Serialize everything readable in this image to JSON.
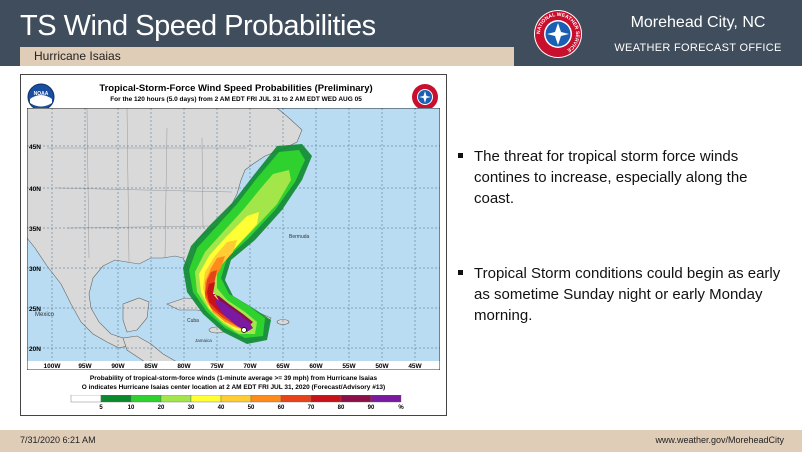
{
  "header": {
    "title": "TS Wind Speed Probabilities",
    "subtitle": "Hurricane Isaias",
    "office_name": "Morehead City, NC",
    "office_type": "WEATHER FORECAST OFFICE",
    "logo_text": "NATIONAL WEATHER SERVICE",
    "colors": {
      "header_bg": "#3f4d5c",
      "accent_bar": "#e0cdb8"
    }
  },
  "figure": {
    "title": "Tropical-Storm-Force Wind Speed Probabilities (Preliminary)",
    "subtitle": "For the 120 hours (5.0 days) from 2 AM EDT FRI JUL 31 to 2 AM EDT WED AUG 05",
    "noaa_label": "NOAA",
    "lat_labels": [
      "45N",
      "40N",
      "35N",
      "30N",
      "25N",
      "20N"
    ],
    "lon_labels": [
      "100W",
      "95W",
      "90W",
      "85W",
      "80W",
      "75W",
      "70W",
      "65W",
      "60W",
      "55W",
      "50W",
      "45W"
    ],
    "map_labels": [
      "Bermuda",
      "Mexico",
      "Cuba",
      "Jamaica"
    ],
    "note_line1": "Probability of tropical-storm-force winds (1-minute average >= 39 mph) from Hurricane Isaias",
    "note_line2": "O indicates Hurricane Isaias center location at 2 AM EDT FRI JUL 31, 2020 (Forecast/Advisory #13)",
    "legend_ticks": [
      "5",
      "10",
      "20",
      "30",
      "40",
      "50",
      "60",
      "70",
      "80",
      "90",
      "%"
    ],
    "legend_colors": [
      "#ffffff",
      "#0b8a2d",
      "#2fd12f",
      "#a3e64a",
      "#ffff33",
      "#ffcc33",
      "#ff8c1a",
      "#e8421a",
      "#c7121a",
      "#8c0f47",
      "#7a1aa0"
    ]
  },
  "bullets": [
    "The threat for tropical storm force winds contines to increase, especially along the coast.",
    "Tropical Storm conditions could begin as early as sometime Sunday night or early Monday morning."
  ],
  "footer": {
    "timestamp": "7/31/2020 6:21 AM",
    "url": "www.weather.gov/MoreheadCity"
  }
}
